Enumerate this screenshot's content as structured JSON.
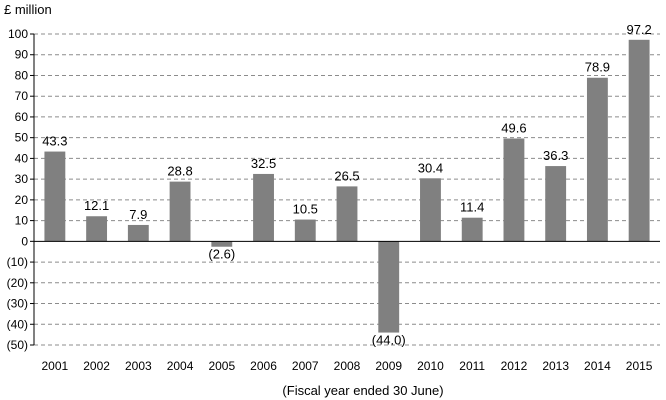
{
  "chart_data": {
    "type": "bar",
    "ylabel": "£ million",
    "xlabel": "(Fiscal year ended 30 June)",
    "categories": [
      "2001",
      "2002",
      "2003",
      "2004",
      "2005",
      "2006",
      "2007",
      "2008",
      "2009",
      "2010",
      "2011",
      "2012",
      "2013",
      "2014",
      "2015"
    ],
    "values": [
      43.3,
      12.1,
      7.9,
      28.8,
      -2.6,
      32.5,
      10.5,
      26.5,
      -44.0,
      30.4,
      11.4,
      49.6,
      36.3,
      78.9,
      97.2
    ],
    "data_labels": [
      "43.3",
      "12.1",
      "7.9",
      "28.8",
      "(2.6)",
      "32.5",
      "10.5",
      "26.5",
      "(44.0)",
      "30.4",
      "11.4",
      "49.6",
      "36.3",
      "78.9",
      "97.2"
    ],
    "ylim": [
      -50,
      100
    ],
    "yticks": [
      100,
      90,
      80,
      70,
      60,
      50,
      40,
      30,
      20,
      10,
      0,
      -10,
      -20,
      -30,
      -40,
      -50
    ],
    "ytick_labels": [
      "100",
      "90",
      "80",
      "70",
      "60",
      "50",
      "40",
      "30",
      "20",
      "10",
      "0",
      "(10)",
      "(20)",
      "(30)",
      "(40)",
      "(50)"
    ],
    "grid": "dashed horizontal",
    "legend": "none",
    "bar_color": "#808080"
  }
}
